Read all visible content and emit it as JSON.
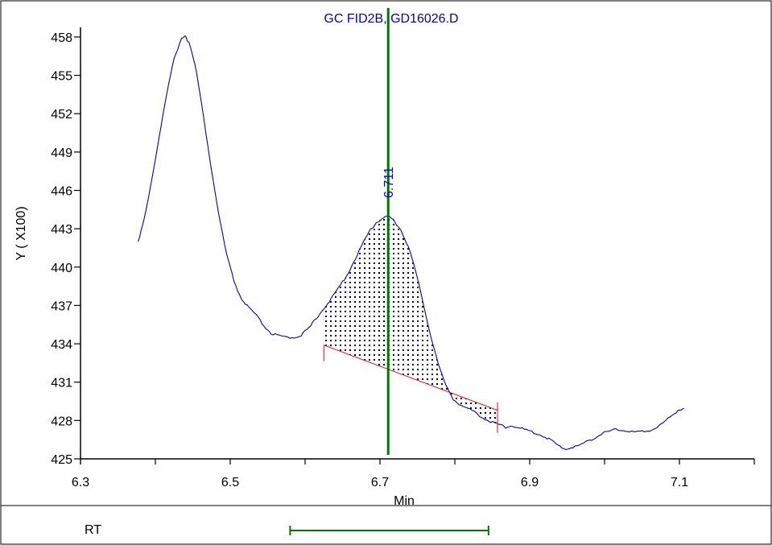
{
  "chart_data": {
    "type": "line",
    "title": "GC FID2B, GD16026.D",
    "xlabel": "Min",
    "ylabel": "Y ( X100)",
    "xlim": [
      6.3,
      7.2
    ],
    "ylim": [
      425,
      458.5
    ],
    "x_ticks": [
      6.3,
      6.5,
      6.7,
      6.9,
      7.1
    ],
    "x_tick_labels": [
      "6.3",
      "6.5",
      "6.7",
      "6.9",
      "7.1"
    ],
    "y_ticks": [
      425,
      428,
      431,
      434,
      437,
      440,
      443,
      446,
      449,
      452,
      455,
      458
    ],
    "y_tick_labels": [
      "425",
      "428",
      "431",
      "434",
      "437",
      "440",
      "443",
      "446",
      "449",
      "452",
      "455",
      "458"
    ],
    "grid": false,
    "series": [
      {
        "color": "#0000cc",
        "x": [
          6.377,
          6.385,
          6.395,
          6.405,
          6.415,
          6.425,
          6.435,
          6.44,
          6.445,
          6.45,
          6.455,
          6.465,
          6.475,
          6.485,
          6.495,
          6.505,
          6.515,
          6.525,
          6.535,
          6.545,
          6.555,
          6.565,
          6.575,
          6.585,
          6.595,
          6.605,
          6.615,
          6.625,
          6.635,
          6.645,
          6.655,
          6.665,
          6.675,
          6.685,
          6.695,
          6.705,
          6.711,
          6.718,
          6.728,
          6.738,
          6.748,
          6.758,
          6.768,
          6.778,
          6.788,
          6.798,
          6.808,
          6.818,
          6.828,
          6.838,
          6.848,
          6.858,
          6.868,
          6.878,
          6.888,
          6.898,
          6.908,
          6.918,
          6.928,
          6.938,
          6.948,
          6.958,
          6.968,
          6.978,
          6.988,
          6.998,
          7.008,
          7.018,
          7.028,
          7.038,
          7.048,
          7.058,
          7.068,
          7.078,
          7.088,
          7.098,
          7.106
        ],
        "y": [
          442.0,
          443.8,
          446.7,
          450.1,
          453.6,
          456.4,
          457.8,
          458.0,
          457.6,
          456.6,
          455.2,
          451.5,
          447.6,
          444.0,
          441.0,
          438.9,
          437.5,
          436.8,
          436.2,
          435.4,
          434.8,
          434.6,
          434.5,
          434.5,
          434.7,
          435.2,
          436.0,
          436.8,
          437.5,
          438.4,
          439.3,
          440.4,
          441.6,
          442.7,
          443.5,
          443.9,
          444.0,
          443.7,
          442.9,
          441.6,
          439.6,
          437.1,
          434.6,
          432.4,
          430.7,
          429.7,
          429.2,
          428.9,
          428.6,
          428.2,
          427.9,
          427.7,
          427.5,
          427.6,
          427.4,
          427.2,
          427.0,
          426.8,
          426.5,
          426.0,
          425.8,
          425.9,
          426.1,
          426.4,
          426.7,
          427.0,
          427.2,
          427.3,
          427.2,
          427.1,
          427.1,
          427.2,
          427.4,
          427.8,
          428.3,
          428.8,
          429.0
        ]
      }
    ],
    "integration": {
      "x_start": 6.625,
      "x_end": 6.857,
      "baseline_start_y": 433.9,
      "baseline_end_y": 428.8,
      "baseline_color": "#ff0000"
    },
    "marker": {
      "x": 6.711,
      "label": "6.711",
      "color": "#007700"
    },
    "rt_panel": {
      "label": "RT",
      "window_start": 6.58,
      "window_end": 6.845,
      "color": "#007700"
    }
  }
}
